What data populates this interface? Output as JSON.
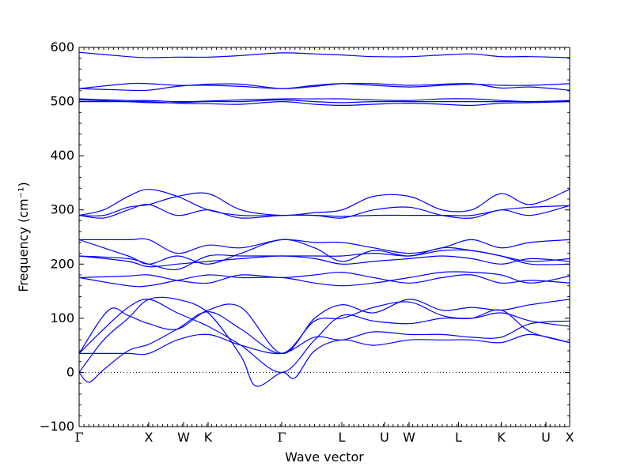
{
  "chart_data": {
    "type": "line",
    "xlabel": "Wave vector",
    "ylabel": "Frequency (cm⁻¹)",
    "ylim": [
      -100,
      600
    ],
    "yticks": [
      -100,
      0,
      100,
      200,
      300,
      400,
      500,
      600
    ],
    "xlim": [
      0,
      1
    ],
    "kpoints": [
      {
        "label": "Γ",
        "x": 0.0
      },
      {
        "label": "X",
        "x": 0.1419
      },
      {
        "label": "W",
        "x": 0.2129
      },
      {
        "label": "K",
        "x": 0.2629
      },
      {
        "label": "Γ",
        "x": 0.4129
      },
      {
        "label": "L",
        "x": 0.5355
      },
      {
        "label": "U",
        "x": 0.6226
      },
      {
        "label": "W",
        "x": 0.6726
      },
      {
        "label": "L",
        "x": 0.7734
      },
      {
        "label": "K",
        "x": 0.8605
      },
      {
        "label": "U",
        "x": 0.9516
      },
      {
        "label": "X",
        "x": 1.0
      }
    ],
    "zero_line": 0,
    "line_color": "#0000ff",
    "series": [
      {
        "x": [
          0,
          0.02,
          0.05,
          0.1,
          0.142,
          0.2,
          0.263,
          0.33,
          0.413,
          0.48,
          0.536,
          0.6,
          0.673,
          0.74,
          0.8,
          0.86,
          0.92,
          1.0
        ],
        "y": [
          0,
          -18,
          5,
          40,
          52,
          80,
          112,
          80,
          35,
          95,
          100,
          120,
          130,
          105,
          100,
          110,
          95,
          85
        ]
      },
      {
        "x": [
          0,
          0.05,
          0.1,
          0.142,
          0.2,
          0.263,
          0.33,
          0.413,
          0.48,
          0.536,
          0.6,
          0.673,
          0.74,
          0.8,
          0.86,
          0.92,
          1.0
        ],
        "y": [
          35,
          80,
          120,
          135,
          110,
          85,
          50,
          0,
          60,
          105,
          95,
          90,
          100,
          100,
          115,
          75,
          55
        ]
      },
      {
        "x": [
          0,
          0.05,
          0.1,
          0.142,
          0.2,
          0.263,
          0.33,
          0.36,
          0.413,
          0.44,
          0.48,
          0.536,
          0.6,
          0.673,
          0.74,
          0.8,
          0.86,
          0.92,
          1.0
        ],
        "y": [
          0,
          60,
          100,
          135,
          135,
          110,
          30,
          -25,
          0,
          -10,
          40,
          60,
          50,
          60,
          60,
          60,
          55,
          70,
          55
        ]
      },
      {
        "x": [
          0,
          0.05,
          0.1,
          0.142,
          0.2,
          0.263,
          0.33,
          0.413,
          0.48,
          0.536,
          0.6,
          0.673,
          0.74,
          0.8,
          0.86,
          0.92,
          1.0
        ],
        "y": [
          35,
          35,
          35,
          35,
          60,
          70,
          50,
          35,
          65,
          60,
          75,
          70,
          70,
          65,
          65,
          90,
          95
        ]
      },
      {
        "x": [
          0,
          0.06,
          0.1,
          0.142,
          0.2,
          0.263,
          0.33,
          0.413,
          0.48,
          0.536,
          0.6,
          0.673,
          0.74,
          0.8,
          0.86,
          0.92,
          1.0
        ],
        "y": [
          35,
          115,
          105,
          90,
          80,
          115,
          120,
          35,
          100,
          125,
          110,
          135,
          115,
          120,
          115,
          125,
          135
        ]
      },
      {
        "x": [
          0,
          0.1,
          0.142,
          0.2,
          0.263,
          0.33,
          0.413,
          0.48,
          0.536,
          0.6,
          0.673,
          0.74,
          0.8,
          0.86,
          0.92,
          1.0
        ],
        "y": [
          175,
          178,
          180,
          170,
          165,
          180,
          175,
          180,
          185,
          175,
          165,
          175,
          180,
          165,
          170,
          165
        ]
      },
      {
        "x": [
          0,
          0.1,
          0.142,
          0.2,
          0.263,
          0.33,
          0.413,
          0.48,
          0.536,
          0.6,
          0.673,
          0.74,
          0.8,
          0.86,
          0.92,
          1.0
        ],
        "y": [
          175,
          160,
          160,
          170,
          180,
          175,
          175,
          165,
          160,
          165,
          175,
          185,
          185,
          180,
          165,
          178
        ]
      },
      {
        "x": [
          0,
          0.1,
          0.142,
          0.2,
          0.263,
          0.33,
          0.413,
          0.48,
          0.536,
          0.6,
          0.673,
          0.74,
          0.8,
          0.86,
          0.92,
          1.0
        ],
        "y": [
          215,
          205,
          195,
          200,
          205,
          210,
          215,
          210,
          200,
          205,
          210,
          215,
          210,
          200,
          210,
          205
        ]
      },
      {
        "x": [
          0,
          0.1,
          0.142,
          0.2,
          0.263,
          0.33,
          0.413,
          0.48,
          0.536,
          0.6,
          0.673,
          0.74,
          0.8,
          0.86,
          0.92,
          1.0
        ],
        "y": [
          215,
          210,
          200,
          190,
          215,
          215,
          215,
          215,
          215,
          220,
          215,
          225,
          225,
          215,
          205,
          210
        ]
      },
      {
        "x": [
          0,
          0.1,
          0.142,
          0.2,
          0.263,
          0.33,
          0.413,
          0.48,
          0.536,
          0.6,
          0.673,
          0.74,
          0.8,
          0.86,
          0.92,
          1.0
        ],
        "y": [
          245,
          245,
          245,
          220,
          235,
          230,
          245,
          240,
          240,
          230,
          220,
          230,
          245,
          230,
          240,
          245
        ]
      },
      {
        "x": [
          0,
          0.1,
          0.142,
          0.2,
          0.263,
          0.33,
          0.413,
          0.48,
          0.536,
          0.6,
          0.673,
          0.74,
          0.8,
          0.86,
          0.92,
          1.0
        ],
        "y": [
          245,
          215,
          200,
          215,
          200,
          220,
          245,
          230,
          205,
          225,
          215,
          230,
          225,
          215,
          200,
          200
        ]
      },
      {
        "x": [
          0,
          0.05,
          0.1,
          0.142,
          0.2,
          0.263,
          0.33,
          0.413,
          0.48,
          0.536,
          0.6,
          0.673,
          0.74,
          0.8,
          0.86,
          0.92,
          1.0
        ],
        "y": [
          290,
          290,
          305,
          310,
          325,
          330,
          300,
          290,
          295,
          300,
          325,
          325,
          300,
          300,
          330,
          310,
          338
        ]
      },
      {
        "x": [
          0,
          0.05,
          0.1,
          0.142,
          0.2,
          0.263,
          0.33,
          0.413,
          0.48,
          0.536,
          0.6,
          0.673,
          0.74,
          0.8,
          0.86,
          0.92,
          1.0
        ],
        "y": [
          290,
          300,
          325,
          338,
          325,
          300,
          290,
          290,
          290,
          285,
          300,
          305,
          290,
          285,
          300,
          290,
          308
        ]
      },
      {
        "x": [
          0,
          0.05,
          0.1,
          0.142,
          0.2,
          0.263,
          0.33,
          0.413,
          0.48,
          0.536,
          0.6,
          0.673,
          0.74,
          0.8,
          0.86,
          0.92,
          1.0
        ],
        "y": [
          290,
          285,
          300,
          310,
          290,
          300,
          285,
          290,
          290,
          288,
          290,
          290,
          290,
          290,
          300,
          305,
          308
        ]
      },
      {
        "x": [
          0,
          0.1,
          0.142,
          0.2,
          0.263,
          0.33,
          0.413,
          0.48,
          0.536,
          0.6,
          0.673,
          0.74,
          0.8,
          0.86,
          0.92,
          1.0
        ],
        "y": [
          500,
          500,
          500,
          497,
          496,
          495,
          500,
          495,
          493,
          495,
          497,
          495,
          493,
          497,
          498,
          500
        ]
      },
      {
        "x": [
          0,
          0.1,
          0.142,
          0.2,
          0.263,
          0.33,
          0.413,
          0.48,
          0.536,
          0.6,
          0.673,
          0.74,
          0.8,
          0.86,
          0.92,
          1.0
        ],
        "y": [
          503,
          500,
          498,
          498,
          500,
          500,
          503,
          500,
          498,
          500,
          500,
          500,
          500,
          500,
          500,
          501
        ]
      },
      {
        "x": [
          0,
          0.1,
          0.142,
          0.2,
          0.263,
          0.33,
          0.413,
          0.48,
          0.536,
          0.6,
          0.673,
          0.74,
          0.8,
          0.86,
          0.92,
          1.0
        ],
        "y": [
          505,
          502,
          502,
          500,
          501,
          503,
          505,
          505,
          505,
          503,
          502,
          505,
          505,
          502,
          500,
          502
        ]
      },
      {
        "x": [
          0,
          0.1,
          0.142,
          0.2,
          0.263,
          0.33,
          0.413,
          0.48,
          0.536,
          0.6,
          0.673,
          0.74,
          0.8,
          0.86,
          0.92,
          1.0
        ],
        "y": [
          524,
          533,
          533,
          530,
          530,
          528,
          524,
          530,
          533,
          530,
          527,
          530,
          532,
          530,
          530,
          533
        ]
      },
      {
        "x": [
          0,
          0.1,
          0.142,
          0.2,
          0.263,
          0.33,
          0.413,
          0.48,
          0.536,
          0.6,
          0.673,
          0.74,
          0.8,
          0.86,
          0.92,
          1.0
        ],
        "y": [
          524,
          521,
          521,
          528,
          532,
          532,
          524,
          528,
          533,
          533,
          530,
          532,
          533,
          525,
          527,
          521
        ]
      },
      {
        "x": [
          0,
          0.1,
          0.142,
          0.2,
          0.263,
          0.33,
          0.413,
          0.48,
          0.536,
          0.6,
          0.673,
          0.74,
          0.8,
          0.86,
          0.92,
          1.0
        ],
        "y": [
          591,
          583,
          581,
          582,
          582,
          585,
          590,
          588,
          586,
          583,
          583,
          586,
          588,
          583,
          583,
          581
        ]
      }
    ]
  }
}
